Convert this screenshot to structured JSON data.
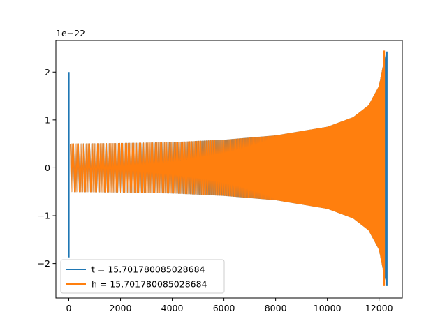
{
  "chart_data": {
    "type": "line",
    "title": "",
    "xlabel": "",
    "ylabel": "",
    "xlim": [
      -500,
      12900
    ],
    "ylim": [
      -2.72,
      2.66
    ],
    "y_offset_text": "1e−22",
    "xticks": [
      0,
      2000,
      4000,
      6000,
      8000,
      10000,
      12000
    ],
    "xtick_labels": [
      "0",
      "2000",
      "4000",
      "6000",
      "8000",
      "10000",
      "12000"
    ],
    "yticks": [
      -2,
      -1,
      0,
      1,
      2
    ],
    "ytick_labels": [
      "−2",
      "−1",
      "0",
      "1",
      "2"
    ],
    "grid": false,
    "legend": {
      "placement": "lower-left",
      "entries": [
        {
          "label": "t = 15.701780085028684",
          "color": "#1f77b4"
        },
        {
          "label": "h = 15.701780085028684",
          "color": "#ff7f0e"
        }
      ]
    },
    "series": [
      {
        "label": "t = 15.701780085028684",
        "color": "#1f77b4",
        "x_start": 0,
        "x_end": 12300,
        "envelope_x": [
          0,
          50,
          2000,
          4000,
          6000,
          8000,
          10000,
          11000,
          11600,
          12000,
          12150,
          12300
        ],
        "envelope_y": [
          2.0,
          0.5,
          0.51,
          0.53,
          0.58,
          0.67,
          0.85,
          1.05,
          1.3,
          1.7,
          2.1,
          2.43
        ],
        "start_spike": {
          "x": 0,
          "ymax": 2.0,
          "ymin": -1.87
        },
        "end_spike": {
          "x": 12300,
          "ymax": 2.43,
          "ymin": -2.47
        }
      },
      {
        "label": "h = 15.701780085028684",
        "color": "#ff7f0e",
        "x_start": 0,
        "x_end": 12200,
        "envelope_x": [
          0,
          2000,
          4000,
          6000,
          8000,
          10000,
          11000,
          11600,
          12000,
          12150,
          12200
        ],
        "envelope_y": [
          0.5,
          0.51,
          0.53,
          0.58,
          0.67,
          0.85,
          1.05,
          1.3,
          1.7,
          2.1,
          2.45
        ],
        "end_spike": {
          "x": 12200,
          "ymax": 2.45,
          "ymin": -2.47
        }
      }
    ]
  }
}
